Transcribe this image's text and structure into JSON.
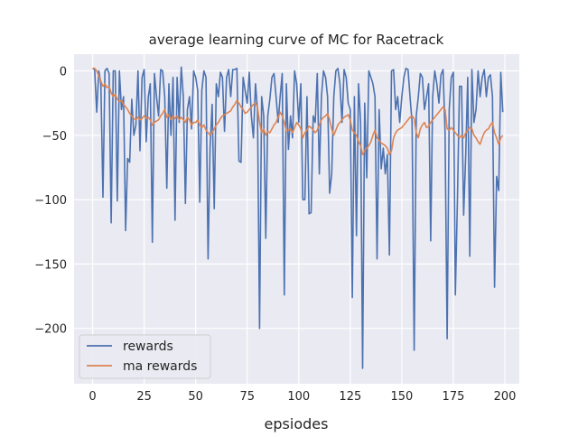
{
  "chart_data": {
    "type": "line",
    "title": "average learning curve of MC for Racetrack",
    "xlabel": "epsiodes",
    "ylabel": "",
    "xlim": [
      -9,
      207
    ],
    "ylim": [
      -243,
      13
    ],
    "xticks": [
      0,
      25,
      50,
      75,
      100,
      125,
      150,
      175,
      200
    ],
    "yticks": [
      0,
      -50,
      -100,
      -150,
      -200
    ],
    "ytick_labels": [
      "0",
      "−50",
      "−100",
      "−150",
      "−200"
    ],
    "grid": true,
    "legend_position": "lower-left",
    "series": [
      {
        "name": "rewards",
        "color": "#4c72b0",
        "values": [
          2,
          1,
          -32,
          0,
          -10,
          -98,
          0,
          2,
          -2,
          -118,
          0,
          0,
          -101,
          0,
          -30,
          -20,
          -124,
          -68,
          -71,
          -22,
          -50,
          -42,
          0,
          -62,
          -5,
          1,
          -55,
          -20,
          -10,
          -133,
          -2,
          -20,
          -35,
          1,
          0,
          -20,
          -91,
          -10,
          -50,
          -5,
          -116,
          -5,
          -40,
          3,
          -20,
          -103,
          -30,
          -20,
          -45,
          0,
          -5,
          -15,
          -102,
          -15,
          0,
          -5,
          -146,
          -60,
          -26,
          -107,
          -10,
          -20,
          -1,
          -5,
          -47,
          -5,
          1,
          -20,
          1,
          1,
          2,
          -70,
          -71,
          -5,
          -15,
          -25,
          -1,
          -35,
          -52,
          -10,
          -30,
          -200,
          -20,
          -35,
          -130,
          -35,
          -22,
          -5,
          -2,
          -20,
          -40,
          -20,
          -2,
          -174,
          -10,
          -61,
          -35,
          -52,
          0,
          -10,
          -40,
          -10,
          -100,
          -100,
          -20,
          -111,
          -110,
          -35,
          -40,
          -2,
          -80,
          -20,
          0,
          -5,
          -20,
          -95,
          -80,
          -20,
          0,
          2,
          -10,
          -40,
          1,
          -5,
          -25,
          -30,
          -176,
          -20,
          -128,
          -10,
          -40,
          -231,
          -25,
          -83,
          0,
          -5,
          -10,
          -20,
          -146,
          -30,
          -76,
          -60,
          -80,
          -65,
          -143,
          0,
          1,
          -30,
          -20,
          -40,
          -20,
          -5,
          2,
          1,
          -20,
          -40,
          -217,
          -35,
          -20,
          -2,
          -5,
          -30,
          -20,
          -10,
          -132,
          -20,
          0,
          -10,
          -25,
          -3,
          1,
          -48,
          -208,
          -30,
          -5,
          -1,
          -174,
          -100,
          -12,
          -12,
          -112,
          -65,
          -5,
          -144,
          1,
          -40,
          -30,
          0,
          -20,
          -5,
          1,
          -20,
          -5,
          -3,
          -20,
          -168,
          -82,
          -93,
          -1,
          -32
        ]
      },
      {
        "name": "ma rewards",
        "color": "#dd8452",
        "values": [
          2,
          2,
          0,
          -4,
          -8,
          -12,
          -10,
          -13,
          -12,
          -17,
          -20,
          -18,
          -22,
          -24,
          -23,
          -26,
          -28,
          -30,
          -33,
          -35,
          -37,
          -38,
          -36,
          -38,
          -37,
          -35,
          -37,
          -36,
          -38,
          -42,
          -40,
          -39,
          -38,
          -35,
          -33,
          -30,
          -36,
          -34,
          -38,
          -35,
          -37,
          -35,
          -38,
          -36,
          -38,
          -40,
          -36,
          -38,
          -42,
          -40,
          -40,
          -38,
          -42,
          -44,
          -42,
          -46,
          -48,
          -50,
          -48,
          -45,
          -42,
          -40,
          -37,
          -35,
          -34,
          -33,
          -32,
          -31,
          -28,
          -26,
          -23,
          -25,
          -28,
          -30,
          -33,
          -32,
          -30,
          -28,
          -26,
          -25,
          -28,
          -40,
          -48,
          -45,
          -50,
          -47,
          -48,
          -45,
          -42,
          -40,
          -36,
          -32,
          -35,
          -40,
          -47,
          -46,
          -45,
          -48,
          -44,
          -40,
          -42,
          -45,
          -52,
          -48,
          -46,
          -43,
          -44,
          -46,
          -48,
          -46,
          -42,
          -38,
          -36,
          -35,
          -33,
          -38,
          -45,
          -50,
          -46,
          -42,
          -40,
          -38,
          -36,
          -35,
          -34,
          -38,
          -46,
          -48,
          -50,
          -55,
          -58,
          -65,
          -62,
          -60,
          -58,
          -55,
          -50,
          -46,
          -52,
          -54,
          -56,
          -57,
          -58,
          -60,
          -65,
          -62,
          -52,
          -48,
          -46,
          -45,
          -44,
          -42,
          -40,
          -38,
          -36,
          -35,
          -37,
          -48,
          -52,
          -45,
          -42,
          -40,
          -44,
          -43,
          -40,
          -38,
          -36,
          -34,
          -32,
          -30,
          -28,
          -30,
          -45,
          -46,
          -44,
          -46,
          -48,
          -50,
          -52,
          -50,
          -52,
          -48,
          -46,
          -44,
          -45,
          -50,
          -52,
          -55,
          -57,
          -52,
          -48,
          -46,
          -45,
          -42,
          -40,
          -48,
          -52,
          -57,
          -52,
          -50
        ]
      }
    ],
    "background": "#eaeaf2",
    "grid_color": "#ffffff"
  }
}
